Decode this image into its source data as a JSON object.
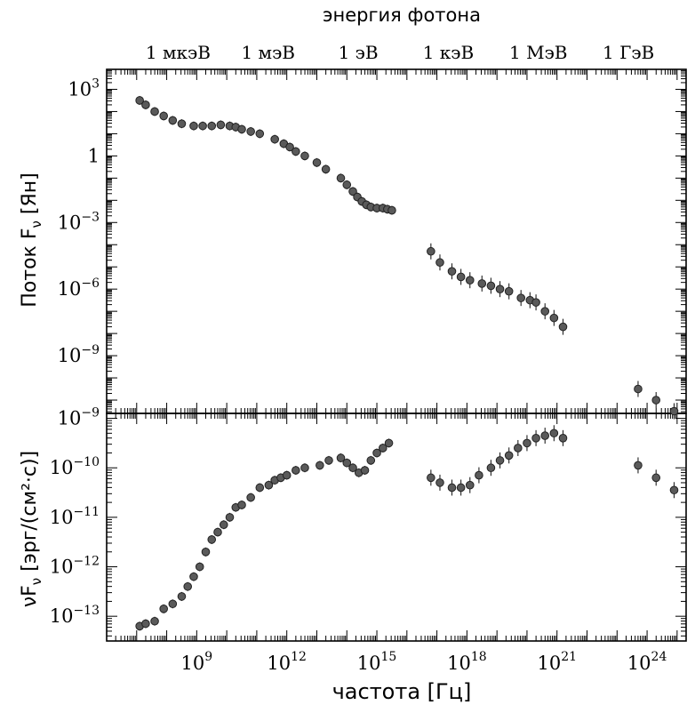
{
  "chart_data": [
    {
      "type": "scatter",
      "panel": "top",
      "xscale": "log",
      "yscale": "log",
      "xlim": [
        6.0,
        25.3
      ],
      "ylim": [
        -11.6,
        3.9
      ],
      "ylabel": "Поток F",
      "ylabel_sub": "ν",
      "ylabel_unit": "[Ян]",
      "top_axis_title": "энергия фотона",
      "top_axis_labels": [
        "1 мкэВ",
        "1 мэВ",
        "1 эВ",
        "1 кэВ",
        "1 МэВ",
        "1 ГэВ"
      ],
      "top_axis_positions": [
        8.38,
        11.38,
        14.38,
        17.38,
        20.38,
        23.38
      ],
      "y_ticks": [
        {
          "v": 3,
          "base": "10",
          "exp": "3"
        },
        {
          "v": 0,
          "base": "1",
          "exp": ""
        },
        {
          "v": -3,
          "base": "10",
          "exp": "−3"
        },
        {
          "v": -6,
          "base": "10",
          "exp": "−6"
        },
        {
          "v": -9,
          "base": "10",
          "exp": "−9"
        }
      ],
      "series": [
        {
          "x": [
            7.1,
            7.3,
            7.6,
            7.9,
            8.2,
            8.5,
            8.9,
            9.2,
            9.5,
            9.8,
            10.1,
            10.3,
            10.5,
            10.8,
            11.1,
            11.6,
            11.9,
            12.1,
            12.3,
            12.6,
            13.0,
            13.3,
            13.8,
            14.0,
            14.2,
            14.35,
            14.5,
            14.65,
            14.8,
            15.0,
            15.2,
            15.35,
            15.5,
            16.8,
            17.1,
            17.5,
            17.8,
            18.1,
            18.5,
            18.8,
            19.1,
            19.4,
            19.8,
            20.1,
            20.3,
            20.6,
            20.9,
            21.2,
            23.7,
            24.3,
            24.9
          ],
          "y": [
            2.5,
            2.3,
            2.0,
            1.8,
            1.6,
            1.45,
            1.35,
            1.35,
            1.35,
            1.4,
            1.35,
            1.3,
            1.2,
            1.1,
            1.0,
            0.75,
            0.55,
            0.4,
            0.2,
            0.0,
            -0.3,
            -0.6,
            -1.0,
            -1.3,
            -1.6,
            -1.85,
            -2.05,
            -2.2,
            -2.3,
            -2.35,
            -2.35,
            -2.4,
            -2.45,
            -4.3,
            -4.8,
            -5.2,
            -5.45,
            -5.6,
            -5.75,
            -5.85,
            -6.0,
            -6.1,
            -6.4,
            -6.5,
            -6.6,
            -7.0,
            -7.3,
            -7.7,
            -10.5,
            -11.0,
            -11.5
          ]
        }
      ]
    },
    {
      "type": "scatter",
      "panel": "bottom",
      "xscale": "log",
      "yscale": "log",
      "xlim": [
        6.0,
        25.3
      ],
      "ylim": [
        -13.5,
        -8.9
      ],
      "xlabel": "частота [Гц]",
      "ylabel": "νF",
      "ylabel_sub": "ν",
      "ylabel_unit": "[эрг/(см²·с)]",
      "y_ticks": [
        {
          "v": -9,
          "base": "10",
          "exp": "−9"
        },
        {
          "v": -10,
          "base": "10",
          "exp": "−10"
        },
        {
          "v": -11,
          "base": "10",
          "exp": "−11"
        },
        {
          "v": -12,
          "base": "10",
          "exp": "−12"
        },
        {
          "v": -13,
          "base": "10",
          "exp": "−13"
        }
      ],
      "x_ticks": [
        {
          "v": 9,
          "base": "10",
          "exp": "9"
        },
        {
          "v": 12,
          "base": "10",
          "exp": "12"
        },
        {
          "v": 15,
          "base": "10",
          "exp": "15"
        },
        {
          "v": 18,
          "base": "10",
          "exp": "18"
        },
        {
          "v": 21,
          "base": "10",
          "exp": "21"
        },
        {
          "v": 24,
          "base": "10",
          "exp": "24"
        }
      ],
      "series": [
        {
          "x": [
            7.1,
            7.3,
            7.6,
            7.9,
            8.2,
            8.5,
            8.7,
            8.9,
            9.1,
            9.3,
            9.5,
            9.7,
            9.9,
            10.1,
            10.3,
            10.5,
            10.8,
            11.1,
            11.4,
            11.6,
            11.8,
            12.0,
            12.3,
            12.6,
            13.1,
            13.4,
            13.8,
            14.0,
            14.2,
            14.4,
            14.6,
            14.8,
            15.0,
            15.2,
            15.4,
            16.8,
            17.1,
            17.5,
            17.8,
            18.1,
            18.4,
            18.8,
            19.1,
            19.4,
            19.7,
            20.0,
            20.3,
            20.6,
            20.9,
            21.2,
            23.7,
            24.3,
            24.9
          ],
          "y": [
            -13.2,
            -13.15,
            -13.1,
            -12.85,
            -12.75,
            -12.6,
            -12.4,
            -12.2,
            -12.0,
            -11.7,
            -11.45,
            -11.3,
            -11.15,
            -11.0,
            -10.8,
            -10.75,
            -10.6,
            -10.4,
            -10.35,
            -10.25,
            -10.2,
            -10.15,
            -10.05,
            -10.0,
            -9.95,
            -9.85,
            -9.8,
            -9.9,
            -10.0,
            -10.1,
            -10.05,
            -9.85,
            -9.7,
            -9.6,
            -9.5,
            -10.2,
            -10.3,
            -10.4,
            -10.4,
            -10.35,
            -10.15,
            -10.0,
            -9.85,
            -9.75,
            -9.6,
            -9.5,
            -9.4,
            -9.35,
            -9.3,
            -9.4,
            -9.95,
            -10.2,
            -10.45
          ]
        }
      ]
    }
  ]
}
